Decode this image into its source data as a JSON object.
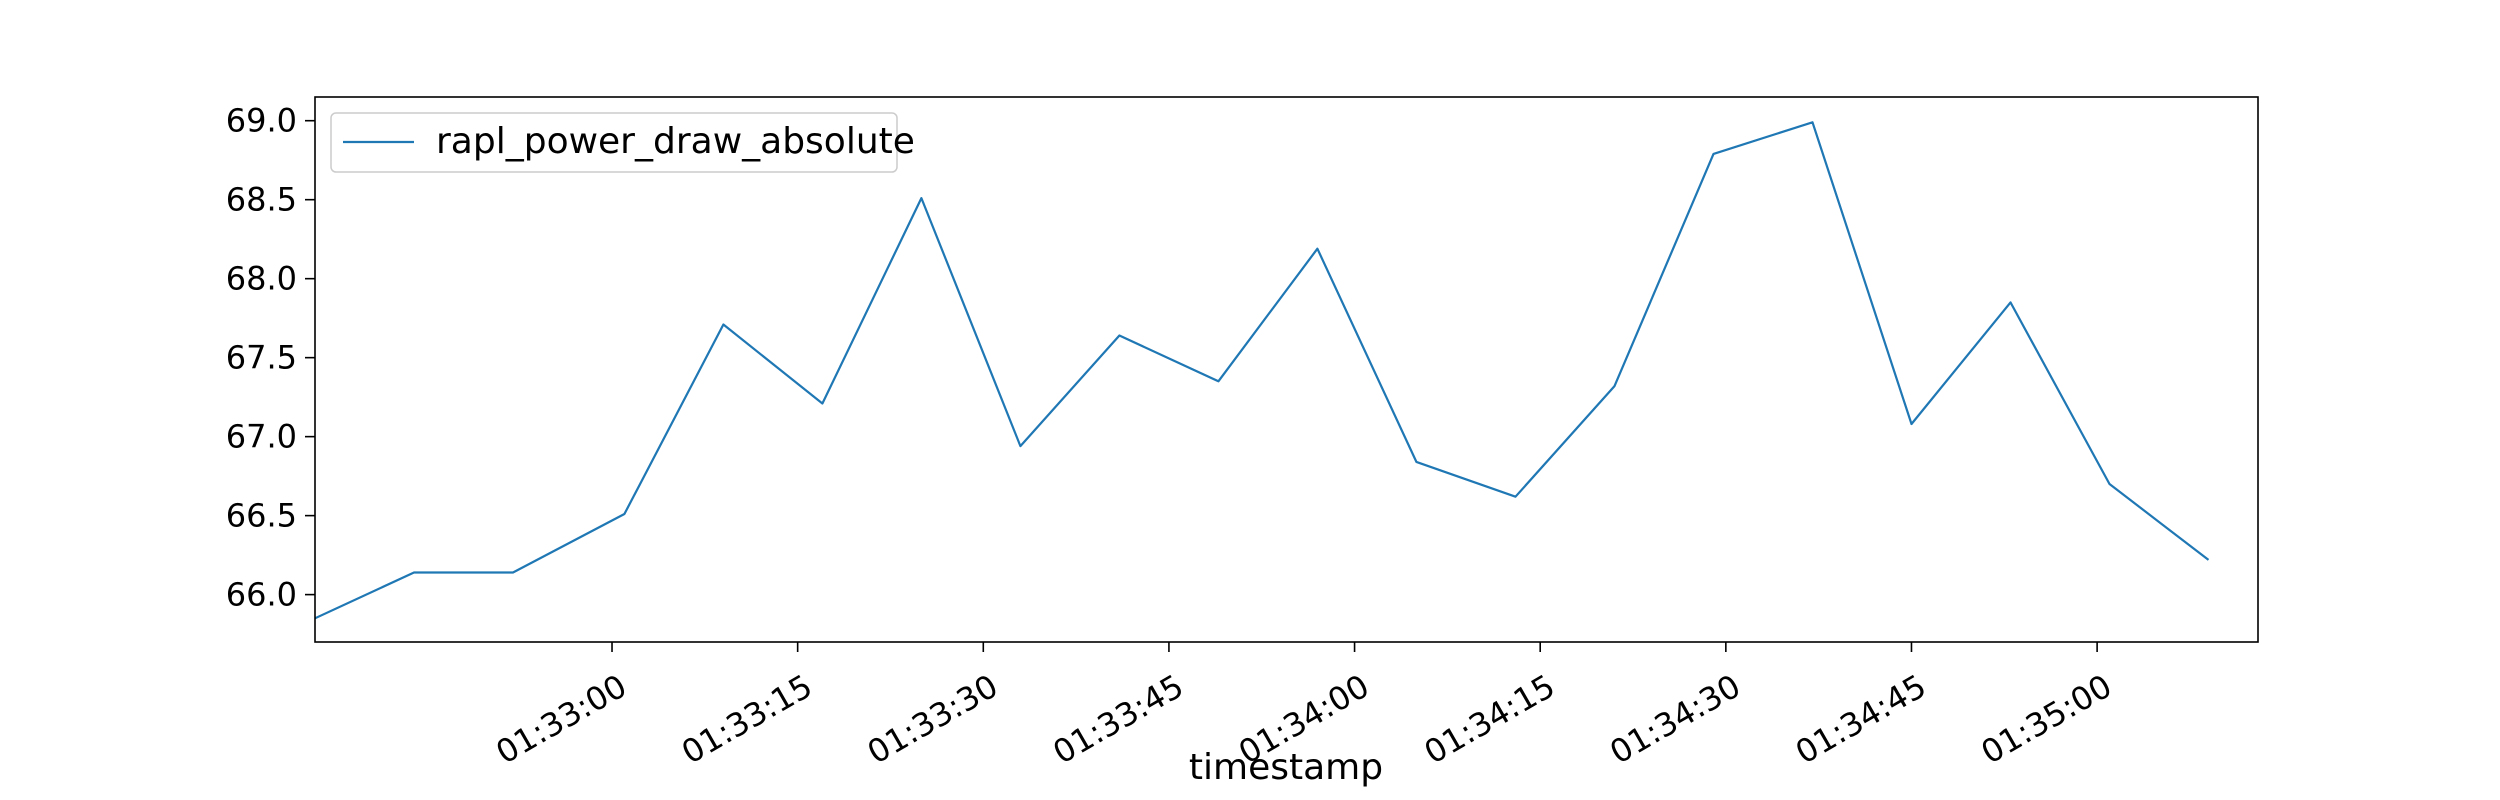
{
  "chart_data": {
    "type": "line",
    "title": "",
    "xlabel": "timestamp",
    "ylabel": "",
    "x_start": "01:32:36",
    "x_end": "01:35:13",
    "x_ticks": [
      "01:33:00",
      "01:33:15",
      "01:33:30",
      "01:33:45",
      "01:34:00",
      "01:34:15",
      "01:34:30",
      "01:34:45",
      "01:35:00"
    ],
    "y_ticks": [
      "66.0",
      "66.5",
      "67.0",
      "67.5",
      "68.0",
      "68.5",
      "69.0"
    ],
    "ylim": [
      65.7,
      69.15
    ],
    "grid": false,
    "legend_position": "top-left",
    "series": [
      {
        "name": "rapl_power_draw_absolute",
        "color": "#1f77b4",
        "x": [
          "01:32:36",
          "01:32:44",
          "01:32:52",
          "01:33:01",
          "01:33:09",
          "01:33:17",
          "01:33:25",
          "01:33:33",
          "01:33:41",
          "01:33:49",
          "01:33:57",
          "01:34:05",
          "01:34:13",
          "01:34:21",
          "01:34:29",
          "01:34:37",
          "01:34:45",
          "01:34:53",
          "01:35:01",
          "01:35:09"
        ],
        "values": [
          65.85,
          66.14,
          66.14,
          66.51,
          67.71,
          67.21,
          68.51,
          66.94,
          67.64,
          67.35,
          68.19,
          66.84,
          66.62,
          67.32,
          68.79,
          68.99,
          67.08,
          67.85,
          66.7,
          66.22
        ]
      }
    ]
  }
}
